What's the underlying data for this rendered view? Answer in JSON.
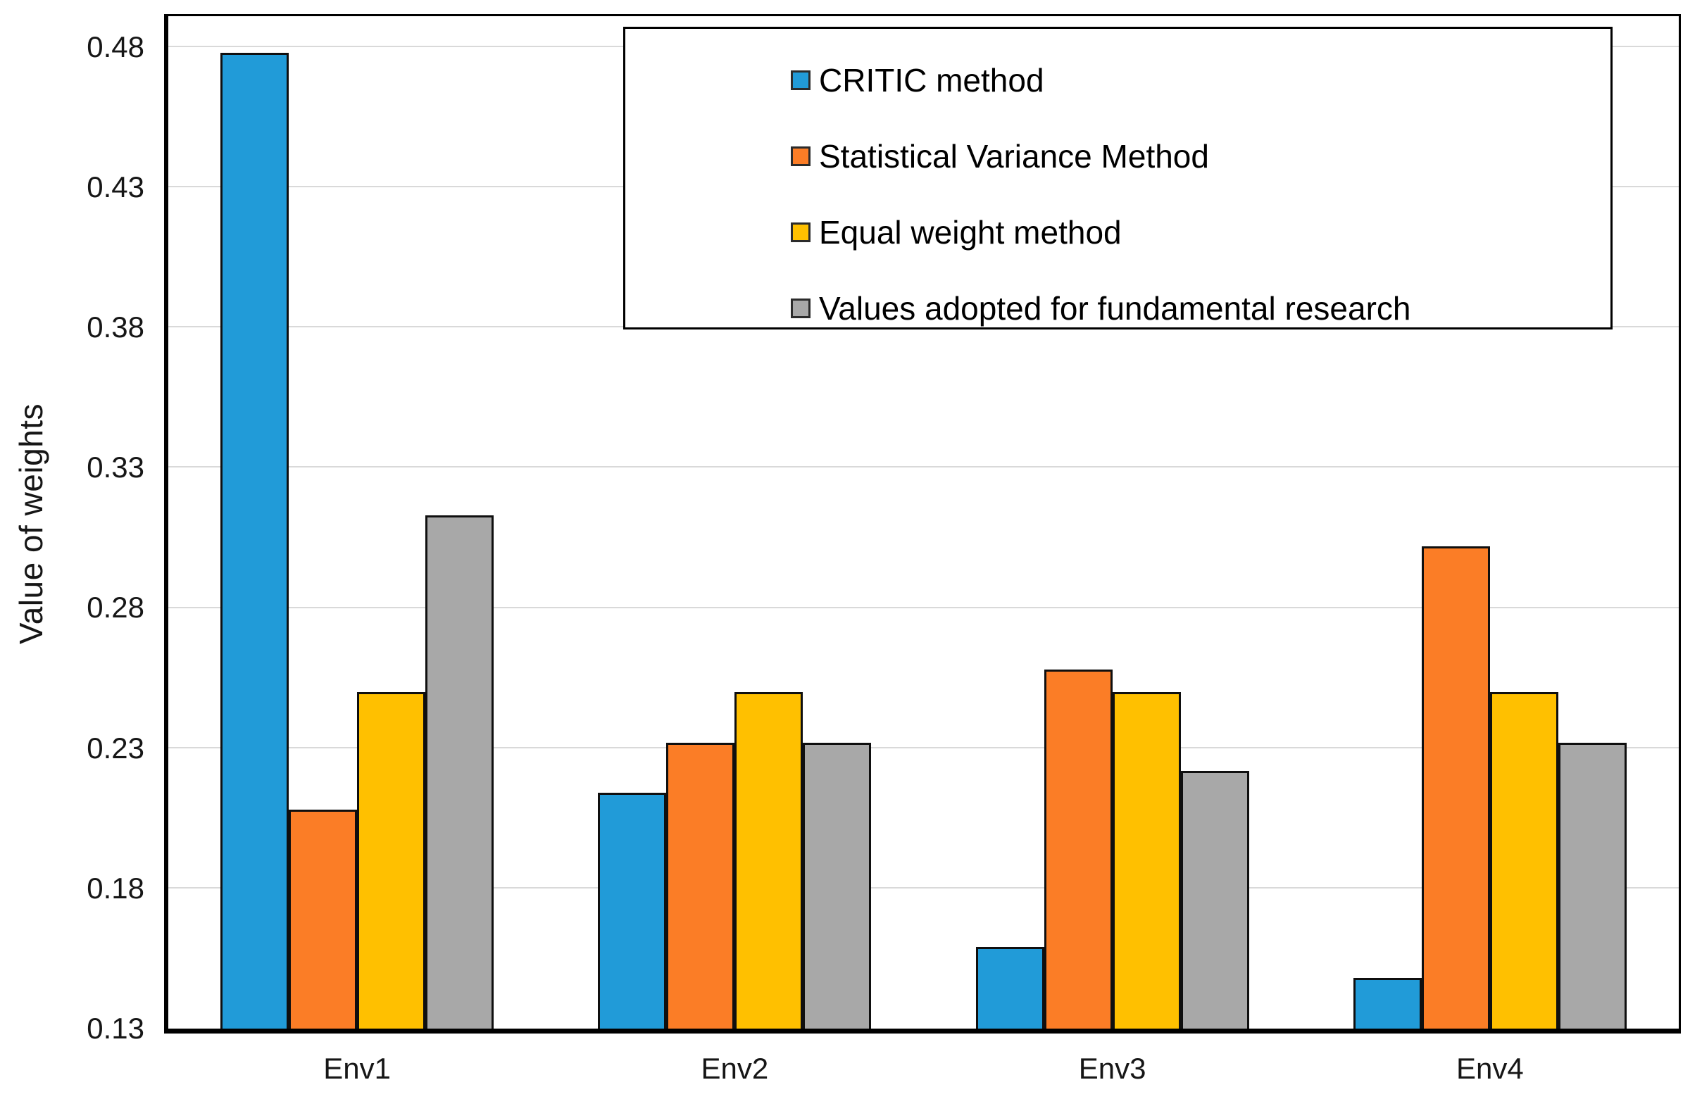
{
  "chart_data": {
    "type": "bar",
    "title": "",
    "xlabel": "",
    "ylabel": "Value of weights",
    "categories": [
      "Env1",
      "Env2",
      "Env3",
      "Env4"
    ],
    "series": [
      {
        "name": "CRITIC method",
        "color": "#219bd8",
        "values": [
          0.478,
          0.214,
          0.159,
          0.148
        ]
      },
      {
        "name": "Statistical Variance Method",
        "color": "#fb7d26",
        "values": [
          0.208,
          0.232,
          0.258,
          0.302
        ]
      },
      {
        "name": "Equal weight method",
        "color": "#ffc000",
        "values": [
          0.25,
          0.25,
          0.25,
          0.25
        ]
      },
      {
        "name": "Values adopted for fundamental research",
        "color": "#a8a8a8",
        "values": [
          0.313,
          0.232,
          0.222,
          0.232
        ]
      }
    ],
    "ylim": [
      0.13,
      0.491
    ],
    "yticks": [
      0.13,
      0.18,
      0.23,
      0.28,
      0.33,
      0.38,
      0.43,
      0.48
    ],
    "ytick_decimals": 2,
    "grid": "horizontal",
    "gridline_color": "#d9d9d9",
    "bar_border_color": "#0f0f0f",
    "legend_position": "inside-top-right",
    "plot_background": "#ffffff"
  }
}
